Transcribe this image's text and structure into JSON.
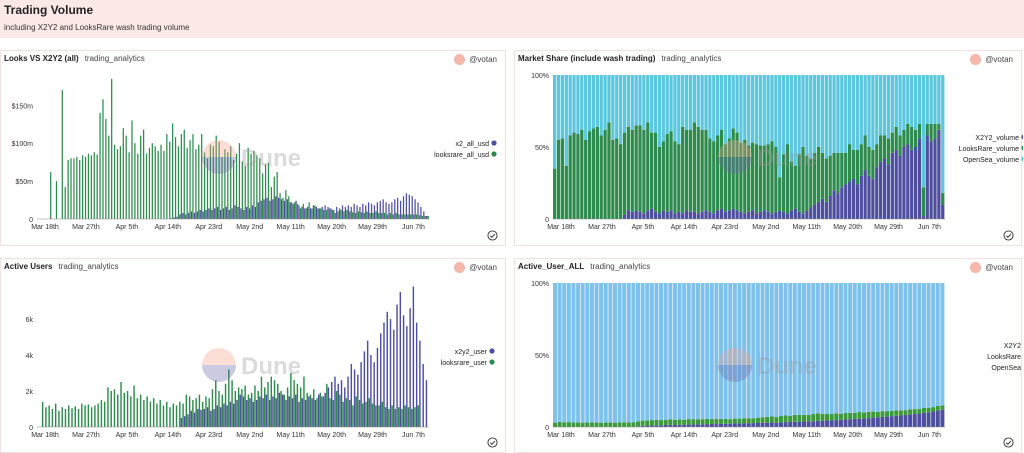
{
  "header": {
    "title": "Trading Volume",
    "subtitle": "including X2Y2 and LooksRare wash trading volume"
  },
  "colors": {
    "purple": "#4e4e9e",
    "green": "#2e8b4e",
    "cyan": "#5bc7dc",
    "lightblue": "#7ec2ec",
    "green2": "#3c9a3c"
  },
  "watermark": "Dune",
  "panels": [
    {
      "title": "Looks VS X2Y2 (all)",
      "source": "trading_analytics",
      "user": "@votan"
    },
    {
      "title": "Market Share (include wash trading)",
      "source": "trading_analytics",
      "user": "@votan"
    },
    {
      "title": "Active Users",
      "source": "trading_analytics",
      "user": "@votan"
    },
    {
      "title": "Active_User_ALL",
      "source": "trading_analytics",
      "user": "@votan"
    }
  ],
  "chart_data": [
    {
      "type": "bar",
      "title": "Looks VS X2Y2 (all)",
      "x_ticks": [
        "Mar 18th",
        "Mar 27th",
        "Apr 5th",
        "Apr 14th",
        "Apr 23rd",
        "May 2nd",
        "May 11th",
        "May 20th",
        "May 29th",
        "Jun 7th"
      ],
      "y_ticks": [
        "0",
        "$50m",
        "$100m",
        "$150m"
      ],
      "ylim": [
        0,
        190
      ],
      "legend": [
        "x2_all_usd",
        "looksrare_all_usd"
      ],
      "legend_position": "right",
      "series": [
        {
          "name": "x2_all_usd",
          "values": [
            0,
            0,
            0,
            0,
            0,
            0,
            0,
            0,
            0,
            0,
            0,
            0,
            0,
            0,
            0,
            0,
            0,
            0,
            0,
            0,
            0,
            0,
            0,
            0,
            0,
            0,
            0,
            0,
            0,
            0,
            0,
            0,
            0,
            0,
            0,
            0,
            0,
            0,
            0,
            0,
            0,
            0,
            0,
            0,
            0,
            0,
            1,
            2,
            3,
            6,
            8,
            6,
            8,
            10,
            8,
            10,
            12,
            10,
            12,
            14,
            12,
            14,
            16,
            12,
            14,
            16,
            12,
            14,
            18,
            16,
            14,
            12,
            16,
            14,
            18,
            16,
            22,
            24,
            26,
            28,
            24,
            26,
            30,
            28,
            26,
            24,
            26,
            22,
            20,
            24,
            18,
            16,
            14,
            16,
            14,
            18,
            16,
            14,
            16,
            18,
            16,
            14,
            12,
            16,
            14,
            18,
            16,
            18,
            16,
            20,
            18,
            16,
            20,
            18,
            22,
            20,
            18,
            22,
            24,
            26,
            22,
            20,
            22,
            26,
            28,
            24,
            30,
            34,
            32,
            30,
            26,
            22,
            16,
            10,
            4
          ]
        },
        {
          "name": "looksrare_all_usd",
          "values": [
            0,
            0,
            0,
            0,
            62,
            0,
            50,
            0,
            170,
            42,
            78,
            80,
            80,
            82,
            78,
            84,
            82,
            86,
            84,
            88,
            85,
            140,
            158,
            132,
            110,
            185,
            98,
            92,
            96,
            120,
            110,
            88,
            130,
            100,
            86,
            110,
            118,
            86,
            94,
            100,
            96,
            90,
            98,
            90,
            112,
            102,
            126,
            108,
            96,
            112,
            118,
            94,
            104,
            112,
            92,
            98,
            112,
            88,
            80,
            98,
            96,
            110,
            102,
            82,
            92,
            88,
            96,
            78,
            86,
            100,
            76,
            70,
            94,
            86,
            90,
            84,
            80,
            60,
            72,
            74,
            42,
            56,
            62,
            34,
            28,
            38,
            30,
            22,
            22,
            20,
            14,
            20,
            14,
            22,
            14,
            18,
            14,
            14,
            12,
            12,
            14,
            12,
            8,
            10,
            12,
            10,
            12,
            10,
            9,
            8,
            10,
            9,
            8,
            10,
            8,
            8,
            10,
            8,
            8,
            8,
            6,
            8,
            6,
            8,
            6,
            6,
            6,
            6,
            6,
            6,
            6,
            5,
            4,
            4,
            4
          ]
        }
      ]
    },
    {
      "type": "bar",
      "title": "Market Share (include wash trading)",
      "x_ticks": [
        "Mar 18th",
        "Mar 27th",
        "Apr 5th",
        "Apr 14th",
        "Apr 23rd",
        "May 2nd",
        "May 11th",
        "May 20th",
        "May 29th",
        "Jun 7th"
      ],
      "y_ticks": [
        "0",
        "50%",
        "100%"
      ],
      "ylim": [
        0,
        100
      ],
      "stacked": true,
      "legend": [
        "X2Y2_volume",
        "LooksRare_volume",
        "OpenSea_volume"
      ],
      "legend_position": "right",
      "series": [
        {
          "name": "X2Y2_volume",
          "values": [
            0,
            0,
            0,
            0,
            0,
            0,
            0,
            0,
            0,
            0,
            0,
            0,
            0,
            0,
            0,
            0,
            0,
            0,
            3,
            6,
            5,
            6,
            5,
            4,
            6,
            7,
            5,
            4,
            6,
            5,
            6,
            4,
            5,
            4,
            6,
            5,
            5,
            4,
            5,
            6,
            5,
            4,
            6,
            7,
            5,
            6,
            7,
            6,
            5,
            4,
            5,
            6,
            4,
            5,
            6,
            5,
            4,
            5,
            6,
            5,
            4,
            6,
            7,
            5,
            4,
            6,
            8,
            10,
            12,
            14,
            12,
            16,
            20,
            18,
            22,
            24,
            26,
            28,
            24,
            30,
            34,
            30,
            28,
            36,
            40,
            42,
            38,
            46,
            48,
            44,
            50,
            52,
            48,
            50,
            56,
            2,
            58,
            54,
            56,
            62,
            10
          ]
        },
        {
          "name": "LooksRare_volume",
          "values": [
            35,
            55,
            56,
            37,
            58,
            60,
            59,
            62,
            55,
            61,
            63,
            64,
            58,
            62,
            67,
            55,
            56,
            52,
            57,
            58,
            57,
            59,
            60,
            58,
            61,
            53,
            55,
            46,
            48,
            54,
            55,
            50,
            47,
            60,
            56,
            57,
            62,
            60,
            57,
            56,
            51,
            50,
            52,
            55,
            47,
            50,
            56,
            54,
            48,
            51,
            46,
            47,
            48,
            46,
            45,
            47,
            50,
            45,
            23,
            40,
            48,
            34,
            30,
            40,
            46,
            38,
            34,
            36,
            38,
            32,
            30,
            28,
            26,
            28,
            24,
            22,
            26,
            20,
            24,
            22,
            24,
            20,
            20,
            16,
            18,
            16,
            18,
            14,
            16,
            14,
            12,
            14,
            16,
            12,
            10,
            20,
            8,
            12,
            10,
            4,
            8
          ]
        }
      ]
    },
    {
      "type": "bar",
      "title": "Active Users",
      "x_ticks": [
        "Mar 18th",
        "Mar 27th",
        "Apr 5th",
        "Apr 14th",
        "Apr 23rd",
        "May 2nd",
        "May 11th",
        "May 20th",
        "May 29th",
        "Jun 7th"
      ],
      "y_ticks": [
        "0",
        "2k",
        "4k",
        "6k"
      ],
      "ylim": [
        0,
        8000
      ],
      "legend": [
        "x2y2_user",
        "looksrare_user"
      ],
      "legend_position": "right",
      "series": [
        {
          "name": "x2y2_user",
          "values": [
            0,
            0,
            0,
            0,
            0,
            0,
            0,
            0,
            0,
            0,
            0,
            0,
            0,
            0,
            0,
            0,
            0,
            0,
            0,
            0,
            0,
            0,
            0,
            0,
            0,
            0,
            0,
            0,
            0,
            0,
            0,
            0,
            0,
            0,
            0,
            0,
            0,
            0,
            0,
            0,
            0,
            0,
            0,
            0,
            500,
            600,
            700,
            900,
            800,
            1000,
            950,
            1000,
            1100,
            900,
            1000,
            1200,
            1100,
            1300,
            1200,
            1400,
            1300,
            1500,
            1800,
            1700,
            1500,
            1600,
            1400,
            1500,
            1700,
            1600,
            1800,
            1500,
            1700,
            1600,
            1900,
            1800,
            1500,
            1700,
            1600,
            1800,
            1400,
            1600,
            1500,
            1700,
            1600,
            1500,
            1800,
            1700,
            1900,
            2200,
            2500,
            2800,
            2400,
            2600,
            2200,
            2800,
            3500,
            3200,
            2900,
            3600,
            4200,
            4800,
            4000,
            3600,
            4400,
            5200,
            5800,
            6400,
            6000,
            5400,
            6800,
            7500,
            6200,
            5600,
            6600,
            7800,
            5800,
            4800,
            3500,
            2600
          ]
        },
        {
          "name": "looksrare_user",
          "values": [
            0,
            1400,
            1100,
            1200,
            1000,
            1300,
            900,
            1100,
            1000,
            1200,
            1050,
            1150,
            1000,
            1300,
            1200,
            1250,
            1100,
            1200,
            1300,
            1500,
            1400,
            2200,
            2000,
            2100,
            1800,
            2500,
            1900,
            2000,
            1700,
            2300,
            1600,
            1800,
            1500,
            1700,
            1400,
            1600,
            1300,
            1500,
            1200,
            1400,
            1100,
            1300,
            1200,
            1400,
            1300,
            1800,
            1700,
            1500,
            1600,
            1800,
            1400,
            1700,
            1600,
            2100,
            2600,
            2000,
            1800,
            2400,
            3200,
            2600,
            2000,
            2200,
            2100,
            2300,
            1800,
            1900,
            2300,
            2000,
            2800,
            2200,
            2500,
            2800,
            2600,
            2400,
            2000,
            1800,
            2200,
            3000,
            2600,
            2400,
            2200,
            2800,
            1900,
            1800,
            2100,
            1600,
            1900,
            1700,
            2400,
            1600,
            1500,
            2000,
            1800,
            1400,
            1600,
            1500,
            1200,
            1700,
            1500,
            1300,
            1400,
            1600,
            1300,
            1200,
            1200,
            1400,
            1100,
            1000,
            1200,
            1000,
            1100,
            1000,
            1200,
            1100,
            1000,
            1100,
            1200
          ]
        }
      ]
    },
    {
      "type": "bar",
      "title": "Active_User_ALL",
      "x_ticks": [
        "Mar 18th",
        "Mar 27th",
        "Apr 5th",
        "Apr 14th",
        "Apr 23rd",
        "May 2nd",
        "May 11th",
        "May 20th",
        "May 29th",
        "Jun 7th"
      ],
      "y_ticks": [
        "0",
        "50%",
        "100%"
      ],
      "ylim": [
        0,
        100
      ],
      "stacked": true,
      "legend": [
        "X2Y2",
        "LooksRare",
        "OpenSea"
      ],
      "legend_position": "right",
      "series": [
        {
          "name": "X2Y2",
          "values": [
            0,
            0,
            0,
            0,
            0,
            0,
            0,
            0,
            0,
            0,
            0,
            0,
            0,
            0,
            0,
            0,
            0,
            0,
            0.5,
            0.8,
            1,
            1,
            1.2,
            1.2,
            1.4,
            1.5,
            1.4,
            1.6,
            1.5,
            1.7,
            1.8,
            1.7,
            1.9,
            2,
            2.1,
            2,
            2.2,
            2.3,
            2.2,
            2.4,
            2.5,
            2.6,
            2.5,
            2.7,
            2.8,
            2.9,
            3,
            3.1,
            3,
            3.2,
            3.4,
            3.5,
            3.6,
            3.5,
            3.8,
            3.9,
            4,
            4.2,
            4.4,
            4.5,
            4.6,
            4.8,
            5,
            5.2,
            5.4,
            5.6,
            5.8,
            6,
            6.2,
            6.5,
            6.8,
            7,
            7.2,
            7.5,
            7.8,
            8,
            8.3,
            8.6,
            9,
            9.4,
            9.8,
            10.2,
            10.8,
            11.4,
            12
          ]
        },
        {
          "name": "LooksRare",
          "values": [
            3,
            3.5,
            3.2,
            3.4,
            3.1,
            3.3,
            3.0,
            3.2,
            3.1,
            3.2,
            3.0,
            3.1,
            3.2,
            3.0,
            3.3,
            3.1,
            3.2,
            3.3,
            3.4,
            3.6,
            3.5,
            3.8,
            3.7,
            3.6,
            3.5,
            3.9,
            3.6,
            3.7,
            3.5,
            3.8,
            3.6,
            3.7,
            3.5,
            3.6,
            3.4,
            3.5,
            3.3,
            3.4,
            3.2,
            3.4,
            3.3,
            3.5,
            3.6,
            3.4,
            3.7,
            3.8,
            4,
            4.2,
            3.9,
            4.4,
            4.6,
            4.2,
            4.8,
            5,
            4.6,
            4.4,
            5,
            5.2,
            4.8,
            4.6,
            4.4,
            4.8,
            4.2,
            4.6,
            4.4,
            4.2,
            4.6,
            4.0,
            4.4,
            4.2,
            3.8,
            4.0,
            3.8,
            3.6,
            3.8,
            3.6,
            3.4,
            3.6,
            3.4,
            3.2,
            3.4,
            3.2,
            3.0,
            3.2,
            3.0
          ]
        }
      ]
    }
  ]
}
